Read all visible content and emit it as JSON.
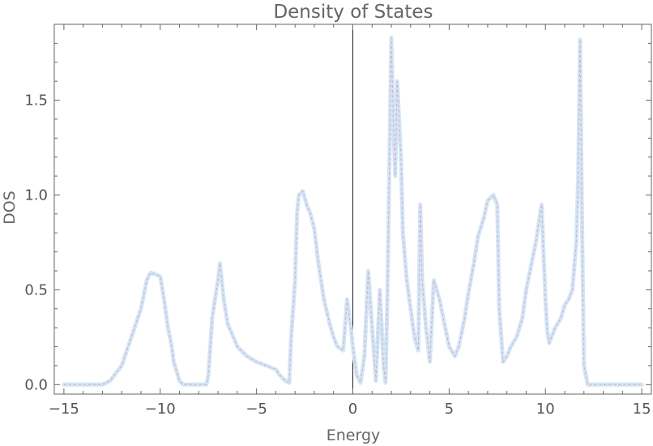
{
  "chart_data": {
    "type": "line",
    "title": "Density of States",
    "xlabel": "Energy",
    "ylabel": "DOS",
    "xlim": [
      -15.5,
      15.5
    ],
    "ylim": [
      -0.05,
      1.9
    ],
    "x_ticks": [
      -15,
      -10,
      -5,
      0,
      5,
      10,
      15
    ],
    "x_tick_labels": [
      "−15",
      "−10",
      "−5",
      "0",
      "5",
      "10",
      "15"
    ],
    "y_ticks": [
      0.0,
      0.5,
      1.0,
      1.5
    ],
    "y_tick_labels": [
      "0.0",
      "0.5",
      "1.0",
      "1.5"
    ],
    "grid": false,
    "reference_line_x": 0,
    "colors": {
      "series_main": "#cfe6f8",
      "series_overlay": "#e8a3b0",
      "frame": "#666666",
      "reference_line": "#222222"
    },
    "series": [
      {
        "x": [
          -15,
          -13,
          -12.6,
          -12,
          -11.5,
          -11,
          -10.7,
          -10.5,
          -10.2,
          -10,
          -9.8,
          -9.6,
          -9.4,
          -9.3,
          -9.0,
          -8.8,
          -8.5,
          -7.6,
          -7.5,
          -7.3,
          -7.2,
          -7.0,
          -6.9,
          -6.7,
          -6.5,
          -6.2,
          -6.0,
          -5.5,
          -5.0,
          -4.5,
          -4.0,
          -3.8,
          -3.5,
          -3.3,
          -3.2,
          -3.0,
          -2.9,
          -2.8,
          -2.6,
          -2.4,
          -2.2,
          -2.0,
          -1.8,
          -1.5,
          -1.2,
          -1.0,
          -0.8,
          -0.5,
          -0.3,
          -0.1,
          0.0,
          0.2,
          0.4,
          0.6,
          0.8,
          1.0,
          1.2,
          1.4,
          1.6,
          1.7,
          1.8,
          2.0,
          2.1,
          2.2,
          2.3,
          2.5,
          2.6,
          2.8,
          3.0,
          3.2,
          3.4,
          3.5,
          3.6,
          3.8,
          4.0,
          4.2,
          4.5,
          4.8,
          5.0,
          5.3,
          5.5,
          5.8,
          6.0,
          6.3,
          6.5,
          6.8,
          7.0,
          7.3,
          7.5,
          7.6,
          7.8,
          8.0,
          8.2,
          8.5,
          8.8,
          9.0,
          9.3,
          9.5,
          9.8,
          10.0,
          10.1,
          10.2,
          10.5,
          10.8,
          11.0,
          11.2,
          11.4,
          11.6,
          11.7,
          11.8,
          11.9,
          12.0,
          12.2,
          12.5,
          13,
          15
        ],
        "values": [
          0.0,
          0.0,
          0.02,
          0.1,
          0.25,
          0.4,
          0.55,
          0.59,
          0.58,
          0.57,
          0.45,
          0.3,
          0.2,
          0.12,
          0.02,
          0.0,
          0.0,
          0.0,
          0.05,
          0.35,
          0.42,
          0.55,
          0.64,
          0.45,
          0.32,
          0.25,
          0.2,
          0.15,
          0.12,
          0.1,
          0.08,
          0.05,
          0.02,
          0.01,
          0.25,
          0.55,
          0.9,
          1.0,
          1.02,
          0.95,
          0.9,
          0.82,
          0.65,
          0.45,
          0.32,
          0.25,
          0.2,
          0.18,
          0.45,
          0.3,
          0.2,
          0.05,
          0.01,
          0.15,
          0.6,
          0.3,
          0.02,
          0.5,
          0.1,
          0.01,
          0.5,
          1.83,
          1.4,
          1.1,
          1.6,
          1.2,
          0.8,
          0.55,
          0.4,
          0.25,
          0.18,
          0.95,
          0.55,
          0.3,
          0.12,
          0.55,
          0.45,
          0.3,
          0.2,
          0.15,
          0.2,
          0.35,
          0.48,
          0.65,
          0.78,
          0.88,
          0.97,
          1.0,
          0.95,
          0.4,
          0.12,
          0.15,
          0.2,
          0.25,
          0.35,
          0.5,
          0.65,
          0.75,
          0.95,
          0.45,
          0.28,
          0.22,
          0.3,
          0.35,
          0.42,
          0.45,
          0.5,
          0.75,
          1.1,
          1.82,
          0.85,
          0.1,
          0.0,
          0.0,
          0.0,
          0.0
        ]
      }
    ]
  }
}
